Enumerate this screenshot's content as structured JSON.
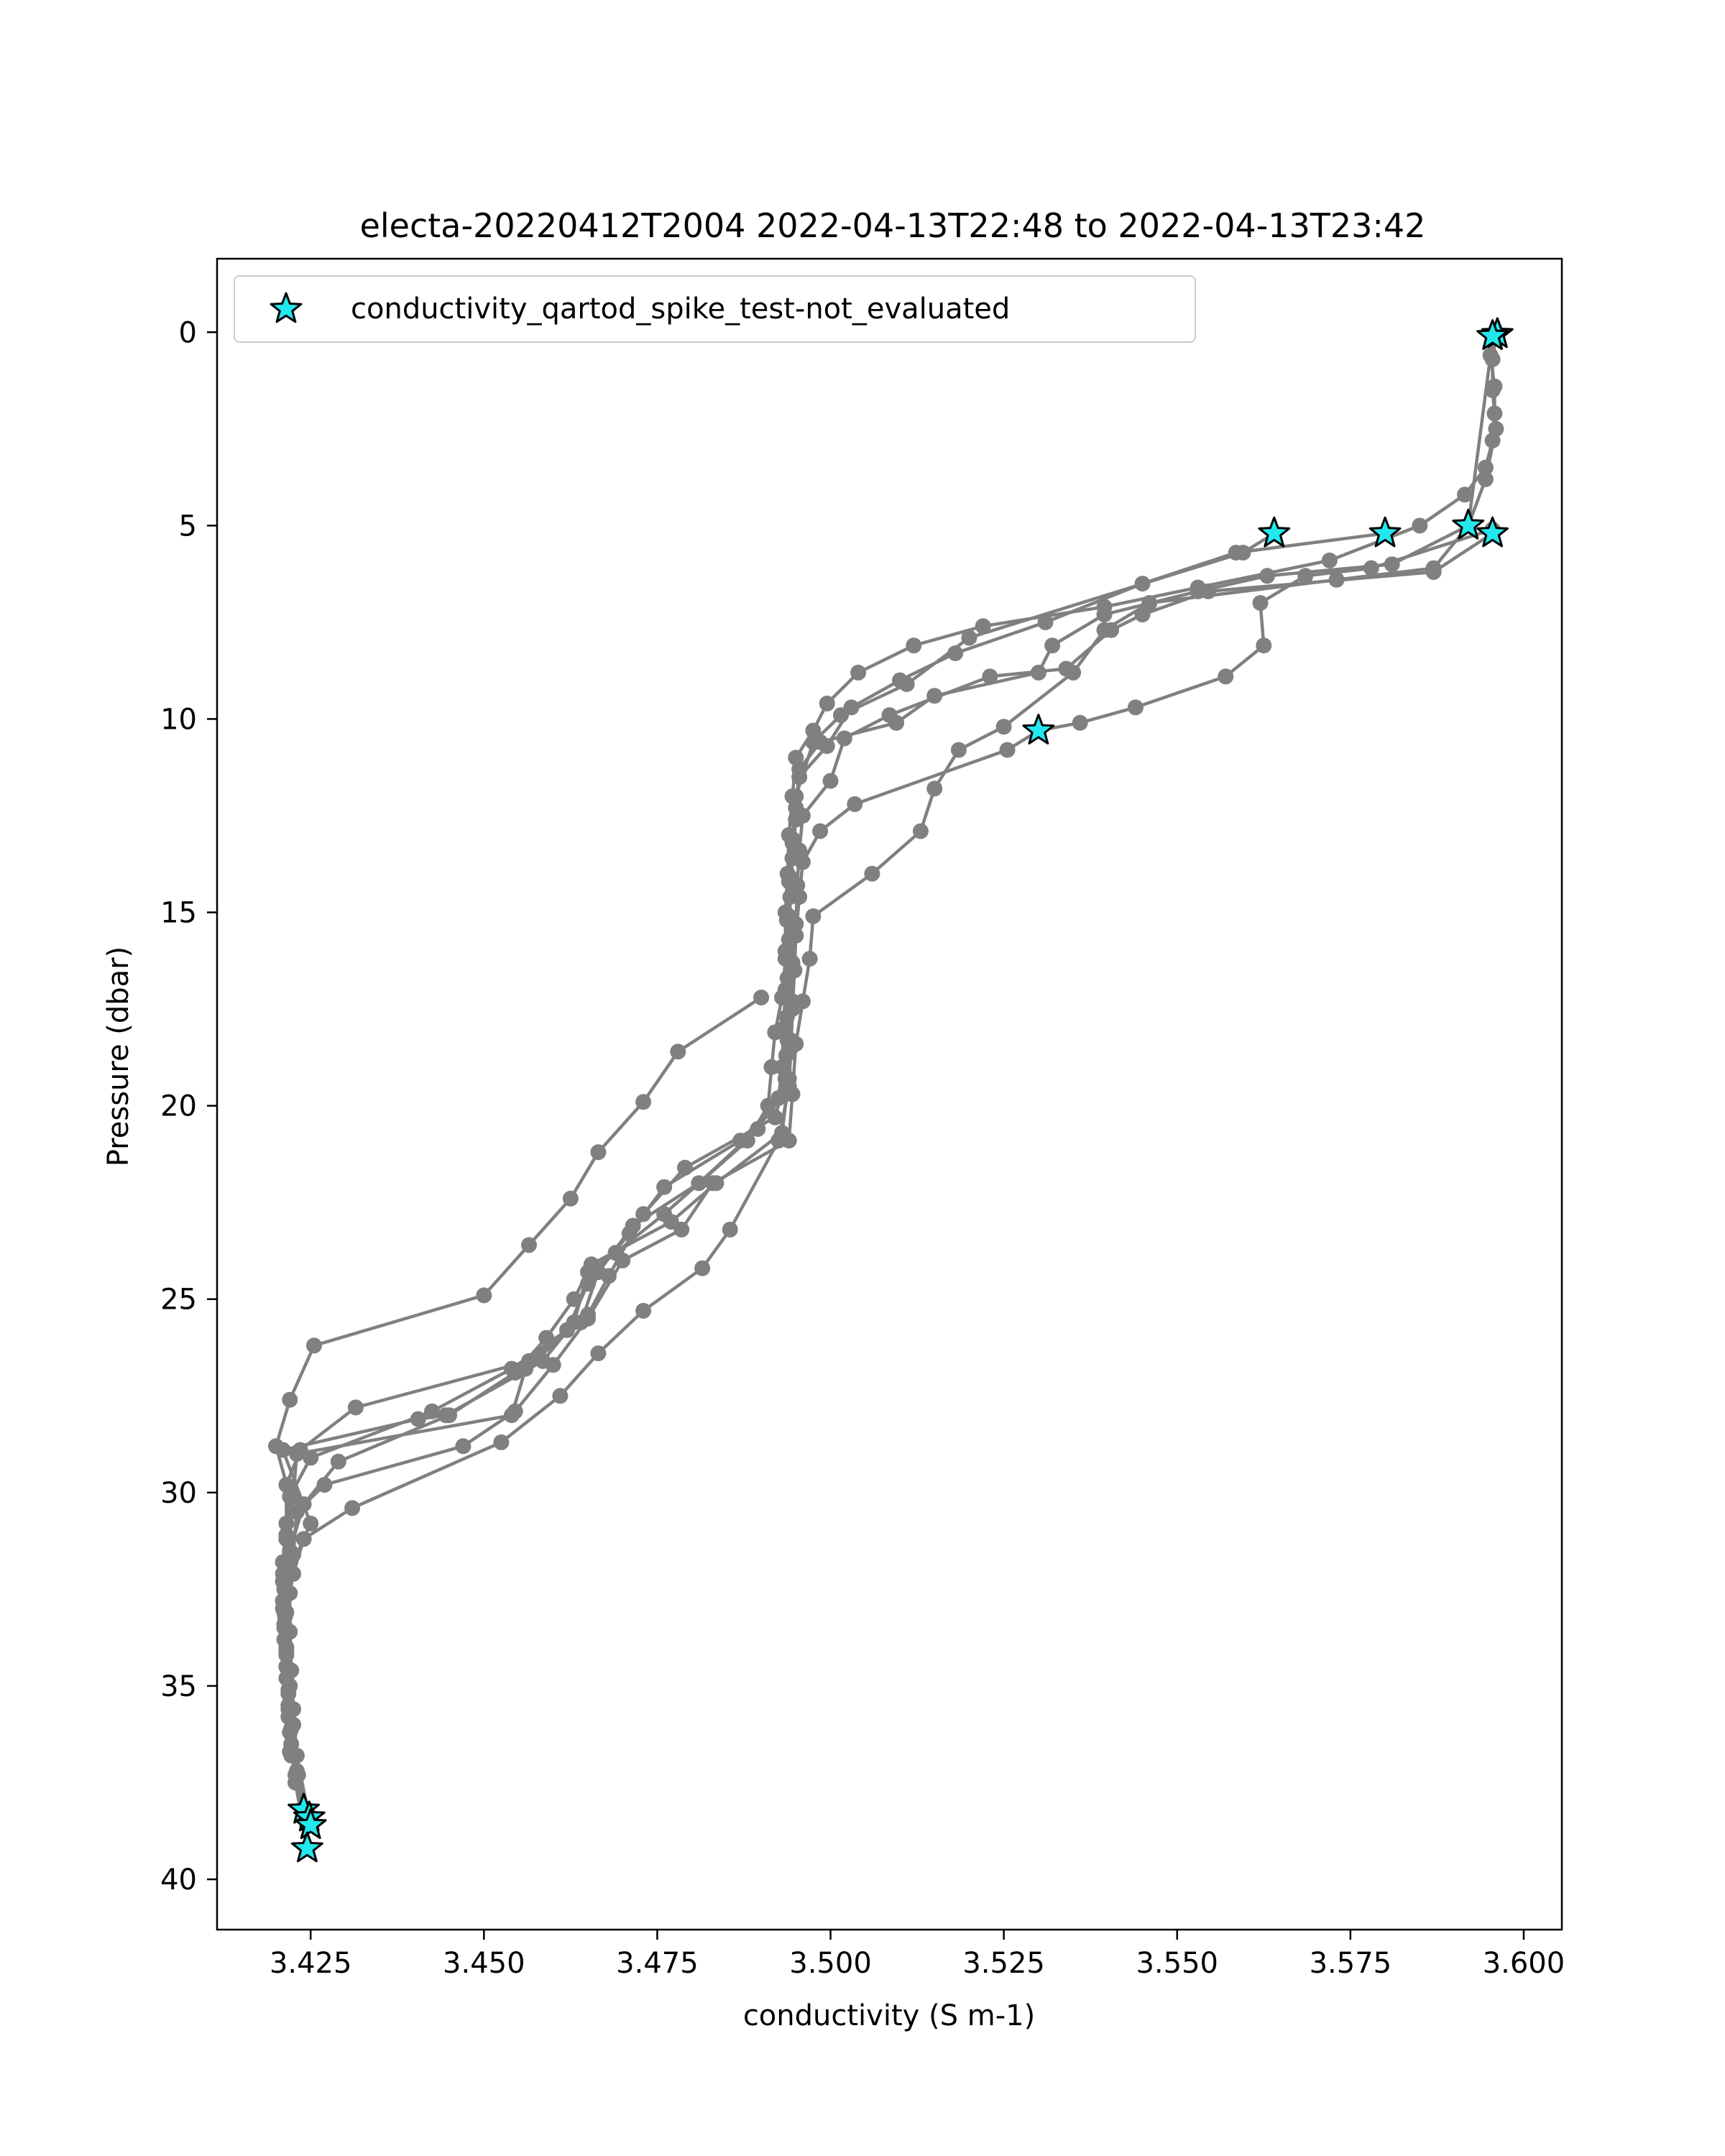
{
  "chart_data": {
    "type": "scatter",
    "title": "electa-20220412T2004 2022-04-13T22:48 to 2022-04-13T23:42",
    "xlabel": "conductivity (S m-1)",
    "ylabel": "Pressure (dbar)",
    "xlim": [
      3.4115,
      3.6055
    ],
    "ylim": [
      41.3,
      -1.9
    ],
    "y_inverted": true,
    "xticks": [
      3.425,
      3.45,
      3.475,
      3.5,
      3.525,
      3.55,
      3.575,
      3.6
    ],
    "xtick_labels": [
      "3.425",
      "3.450",
      "3.475",
      "3.500",
      "3.525",
      "3.550",
      "3.575",
      "3.600"
    ],
    "yticks": [
      0,
      5,
      10,
      15,
      20,
      25,
      30,
      35,
      40
    ],
    "ytick_labels": [
      "0",
      "5",
      "10",
      "15",
      "20",
      "25",
      "30",
      "35",
      "40"
    ],
    "grid": false,
    "legend_position": "upper-left",
    "line_color": "#808080",
    "flag_color": "#22e8ee",
    "series": [
      {
        "values": [
          [
            3.596,
            0.0
          ],
          [
            3.5952,
            0.6
          ],
          [
            3.5958,
            1.4
          ],
          [
            3.5958,
            2.1
          ],
          [
            3.5955,
            2.8
          ],
          [
            3.5945,
            3.5
          ],
          [
            3.5915,
            4.2
          ],
          [
            3.585,
            5.0
          ],
          [
            3.572,
            5.9
          ],
          [
            3.553,
            6.6
          ],
          [
            3.5395,
            7.1
          ],
          [
            3.522,
            7.6
          ],
          [
            3.512,
            8.1
          ],
          [
            3.504,
            8.8
          ],
          [
            3.4995,
            9.6
          ],
          [
            3.4975,
            10.3
          ],
          [
            3.495,
            11.0
          ],
          [
            3.4945,
            12.0
          ],
          [
            3.494,
            13.0
          ],
          [
            3.4938,
            14.0
          ],
          [
            3.4935,
            15.0
          ],
          [
            3.4935,
            16.0
          ],
          [
            3.4935,
            17.0
          ],
          [
            3.4932,
            18.0
          ],
          [
            3.493,
            19.0
          ],
          [
            3.4925,
            19.8
          ],
          [
            3.4895,
            20.6
          ],
          [
            3.481,
            22.0
          ],
          [
            3.4715,
            23.1
          ],
          [
            3.4665,
            24.3
          ],
          [
            3.464,
            25.6
          ],
          [
            3.4565,
            26.6
          ],
          [
            3.4315,
            27.8
          ],
          [
            3.4235,
            28.9
          ],
          [
            3.4215,
            29.8
          ],
          [
            3.4215,
            30.8
          ],
          [
            3.421,
            31.8
          ],
          [
            3.421,
            32.8
          ],
          [
            3.4212,
            33.8
          ],
          [
            3.4215,
            34.8
          ],
          [
            3.4218,
            35.8
          ],
          [
            3.4222,
            36.8
          ],
          [
            3.424,
            38.2
          ]
        ]
      },
      {
        "values": [
          [
            3.596,
            0.1
          ],
          [
            3.5955,
            0.7
          ],
          [
            3.5955,
            1.5
          ],
          [
            3.596,
            2.5
          ],
          [
            3.5945,
            3.8
          ],
          [
            3.592,
            5.0
          ],
          [
            3.581,
            6.0
          ],
          [
            3.563,
            6.3
          ],
          [
            3.553,
            6.7
          ],
          [
            3.5395,
            7.3
          ],
          [
            3.532,
            8.1
          ],
          [
            3.53,
            8.8
          ],
          [
            3.515,
            9.4
          ],
          [
            3.5095,
            10.1
          ],
          [
            3.4985,
            10.6
          ],
          [
            3.4955,
            11.3
          ],
          [
            3.495,
            12.3
          ],
          [
            3.4945,
            13.2
          ],
          [
            3.4942,
            14.1
          ],
          [
            3.494,
            15.1
          ],
          [
            3.4938,
            16.1
          ],
          [
            3.4937,
            17.2
          ],
          [
            3.4938,
            18.3
          ],
          [
            3.4935,
            19.3
          ],
          [
            3.492,
            20.3
          ],
          [
            3.479,
            21.6
          ],
          [
            3.473,
            22.8
          ],
          [
            3.468,
            24.4
          ],
          [
            3.465,
            25.4
          ],
          [
            3.456,
            26.8
          ],
          [
            3.454,
            28.0
          ],
          [
            3.423,
            29.0
          ],
          [
            3.4225,
            30.1
          ],
          [
            3.4215,
            31.2
          ],
          [
            3.421,
            32.3
          ],
          [
            3.4212,
            33.4
          ],
          [
            3.4215,
            34.5
          ],
          [
            3.4218,
            35.6
          ],
          [
            3.422,
            36.7
          ],
          [
            3.4245,
            38.4
          ]
        ]
      },
      {
        "values": [
          [
            3.5955,
            0.2
          ],
          [
            3.592,
            5.0
          ],
          [
            3.587,
            6.1
          ],
          [
            3.573,
            6.4
          ],
          [
            3.546,
            7.0
          ],
          [
            3.5395,
            7.7
          ],
          [
            3.535,
            8.8
          ],
          [
            3.525,
            10.2
          ],
          [
            3.5185,
            10.8
          ],
          [
            3.515,
            11.8
          ],
          [
            3.513,
            12.9
          ],
          [
            3.506,
            14.0
          ],
          [
            3.4975,
            15.1
          ],
          [
            3.497,
            16.2
          ],
          [
            3.496,
            17.3
          ],
          [
            3.495,
            18.4
          ],
          [
            3.4945,
            19.7
          ],
          [
            3.494,
            20.9
          ],
          [
            3.483,
            22.0
          ],
          [
            3.4785,
            23.2
          ],
          [
            3.47,
            24.0
          ],
          [
            3.465,
            25.5
          ],
          [
            3.46,
            26.7
          ],
          [
            3.4545,
            27.9
          ],
          [
            3.447,
            28.8
          ],
          [
            3.427,
            29.8
          ],
          [
            3.423,
            30.5
          ],
          [
            3.4225,
            31.6
          ],
          [
            3.422,
            32.6
          ],
          [
            3.422,
            33.6
          ],
          [
            3.4222,
            34.6
          ],
          [
            3.4225,
            35.6
          ],
          [
            3.423,
            36.8
          ],
          [
            3.425,
            38.6
          ]
        ]
      },
      {
        "values": [
          [
            3.5955,
            5.2
          ],
          [
            3.587,
            6.2
          ],
          [
            3.5545,
            6.7
          ],
          [
            3.545,
            7.3
          ],
          [
            3.5405,
            7.7
          ],
          [
            3.534,
            8.7
          ],
          [
            3.523,
            8.9
          ],
          [
            3.5085,
            9.9
          ],
          [
            3.502,
            10.5
          ],
          [
            3.5,
            11.6
          ],
          [
            3.496,
            12.5
          ],
          [
            3.4955,
            13.4
          ],
          [
            3.4952,
            14.3
          ],
          [
            3.495,
            15.3
          ],
          [
            3.4945,
            16.3
          ],
          [
            3.4945,
            17.3
          ],
          [
            3.4942,
            18.3
          ],
          [
            3.494,
            19.3
          ],
          [
            3.493,
            20.7
          ],
          [
            3.4835,
            22.0
          ],
          [
            3.477,
            23.0
          ],
          [
            3.4655,
            24.1
          ],
          [
            3.463,
            25.0
          ],
          [
            3.459,
            26.0
          ],
          [
            3.4545,
            26.9
          ],
          [
            3.445,
            28.0
          ],
          [
            3.429,
            29.2
          ],
          [
            3.424,
            30.3
          ],
          [
            3.422,
            31.5
          ],
          [
            3.4212,
            32.5
          ],
          [
            3.4212,
            33.5
          ],
          [
            3.4215,
            34.5
          ],
          [
            3.4218,
            35.5
          ],
          [
            3.4222,
            36.5
          ],
          [
            3.4228,
            37.5
          ],
          [
            3.4245,
            39.2
          ]
        ]
      },
      {
        "values": [
          [
            3.5955,
            5.1
          ],
          [
            3.578,
            6.1
          ],
          [
            3.5685,
            6.3
          ],
          [
            3.562,
            7.0
          ],
          [
            3.5625,
            8.1
          ],
          [
            3.557,
            8.9
          ],
          [
            3.544,
            9.7
          ],
          [
            3.536,
            10.1
          ],
          [
            3.53,
            10.3
          ],
          [
            3.5255,
            10.8
          ],
          [
            3.5035,
            12.2
          ],
          [
            3.4985,
            12.9
          ],
          [
            3.496,
            13.7
          ],
          [
            3.4955,
            14.6
          ],
          [
            3.495,
            15.6
          ],
          [
            3.4948,
            16.5
          ],
          [
            3.4945,
            17.5
          ],
          [
            3.4943,
            18.5
          ],
          [
            3.494,
            19.5
          ],
          [
            3.4925,
            20.9
          ],
          [
            3.4855,
            23.2
          ],
          [
            3.4815,
            24.2
          ],
          [
            3.473,
            25.3
          ],
          [
            3.4665,
            26.4
          ],
          [
            3.461,
            27.5
          ],
          [
            3.4525,
            28.7
          ],
          [
            3.431,
            30.4
          ],
          [
            3.424,
            31.2
          ],
          [
            3.4225,
            32.1
          ],
          [
            3.4215,
            33.1
          ],
          [
            3.4215,
            34.1
          ],
          [
            3.4218,
            35.1
          ],
          [
            3.4222,
            36.1
          ],
          [
            3.423,
            37.3
          ],
          [
            3.425,
            38.5
          ]
        ]
      },
      {
        "values": [
          [
            3.58,
            5.2
          ],
          [
            3.5585,
            5.7
          ],
          [
            3.545,
            6.5
          ],
          [
            3.531,
            7.5
          ],
          [
            3.518,
            8.3
          ],
          [
            3.51,
            9.0
          ],
          [
            3.503,
            9.7
          ],
          [
            3.4995,
            10.7
          ],
          [
            3.4955,
            11.5
          ],
          [
            3.495,
            12.6
          ],
          [
            3.4945,
            13.6
          ],
          [
            3.4942,
            14.6
          ],
          [
            3.494,
            15.7
          ],
          [
            3.4938,
            16.7
          ],
          [
            3.4937,
            17.7
          ],
          [
            3.4936,
            18.7
          ],
          [
            3.4935,
            19.7
          ],
          [
            3.487,
            20.9
          ],
          [
            3.476,
            22.1
          ],
          [
            3.471,
            23.3
          ],
          [
            3.465,
            24.6
          ],
          [
            3.462,
            25.8
          ],
          [
            3.454,
            26.8
          ],
          [
            3.4425,
            27.9
          ],
          [
            3.425,
            29.1
          ],
          [
            3.422,
            30.1
          ],
          [
            3.4215,
            31.2
          ],
          [
            3.4212,
            32.2
          ],
          [
            3.4213,
            33.2
          ],
          [
            3.4215,
            34.2
          ],
          [
            3.4218,
            35.2
          ],
          [
            3.422,
            36.2
          ],
          [
            3.4228,
            37.3
          ],
          [
            3.4245,
            38.6
          ]
        ]
      },
      {
        "values": [
          [
            3.564,
            5.2
          ],
          [
            3.5595,
            5.7
          ],
          [
            3.52,
            7.9
          ],
          [
            3.511,
            9.1
          ],
          [
            3.5015,
            9.9
          ],
          [
            3.4975,
            10.6
          ],
          [
            3.495,
            12.0
          ],
          [
            3.4945,
            13.1
          ],
          [
            3.494,
            14.2
          ],
          [
            3.4937,
            15.2
          ],
          [
            3.4935,
            16.2
          ],
          [
            3.493,
            17.2
          ],
          [
            3.492,
            18.1
          ],
          [
            3.4915,
            19.0
          ],
          [
            3.491,
            20.0
          ],
          [
            3.488,
            20.9
          ],
          [
            3.476,
            22.8
          ],
          [
            3.469,
            23.8
          ],
          [
            3.465,
            24.3
          ],
          [
            3.463,
            25.6
          ],
          [
            3.4585,
            26.6
          ],
          [
            3.4445,
            28.0
          ],
          [
            3.4405,
            28.1
          ],
          [
            3.421,
            28.9
          ],
          [
            3.425,
            30.8
          ],
          [
            3.422,
            32.0
          ],
          [
            3.421,
            33.0
          ],
          [
            3.4215,
            34.0
          ],
          [
            3.422,
            35.0
          ],
          [
            3.4225,
            36.0
          ],
          [
            3.423,
            37.2
          ],
          [
            3.4245,
            38.4
          ]
        ]
      },
      {
        "values": [
          [
            3.49,
            17.2
          ],
          [
            3.478,
            18.6
          ],
          [
            3.473,
            19.9
          ],
          [
            3.4665,
            21.2
          ],
          [
            3.4625,
            22.4
          ],
          [
            3.4565,
            23.6
          ],
          [
            3.45,
            24.9
          ],
          [
            3.4255,
            26.2
          ],
          [
            3.422,
            27.6
          ],
          [
            3.42,
            28.8
          ],
          [
            3.422,
            30.1
          ],
          [
            3.4215,
            31.1
          ],
          [
            3.421,
            32.1
          ],
          [
            3.4212,
            33.1
          ],
          [
            3.4215,
            34.1
          ],
          [
            3.4218,
            35.1
          ],
          [
            3.4222,
            36.1
          ],
          [
            3.4232,
            37.3
          ],
          [
            3.4245,
            38.2
          ]
        ]
      }
    ],
    "flagged_points": [
      [
        3.5962,
        0.05
      ],
      [
        3.5955,
        0.1
      ],
      [
        3.564,
        5.2
      ],
      [
        3.58,
        5.2
      ],
      [
        3.592,
        5.0
      ],
      [
        3.5955,
        5.2
      ],
      [
        3.53,
        10.3
      ],
      [
        3.424,
        38.2
      ],
      [
        3.4248,
        38.4
      ],
      [
        3.425,
        38.6
      ],
      [
        3.4245,
        39.2
      ]
    ],
    "legend": {
      "entries": [
        "conductivity_qartod_spike_test-not_evaluated"
      ]
    }
  }
}
